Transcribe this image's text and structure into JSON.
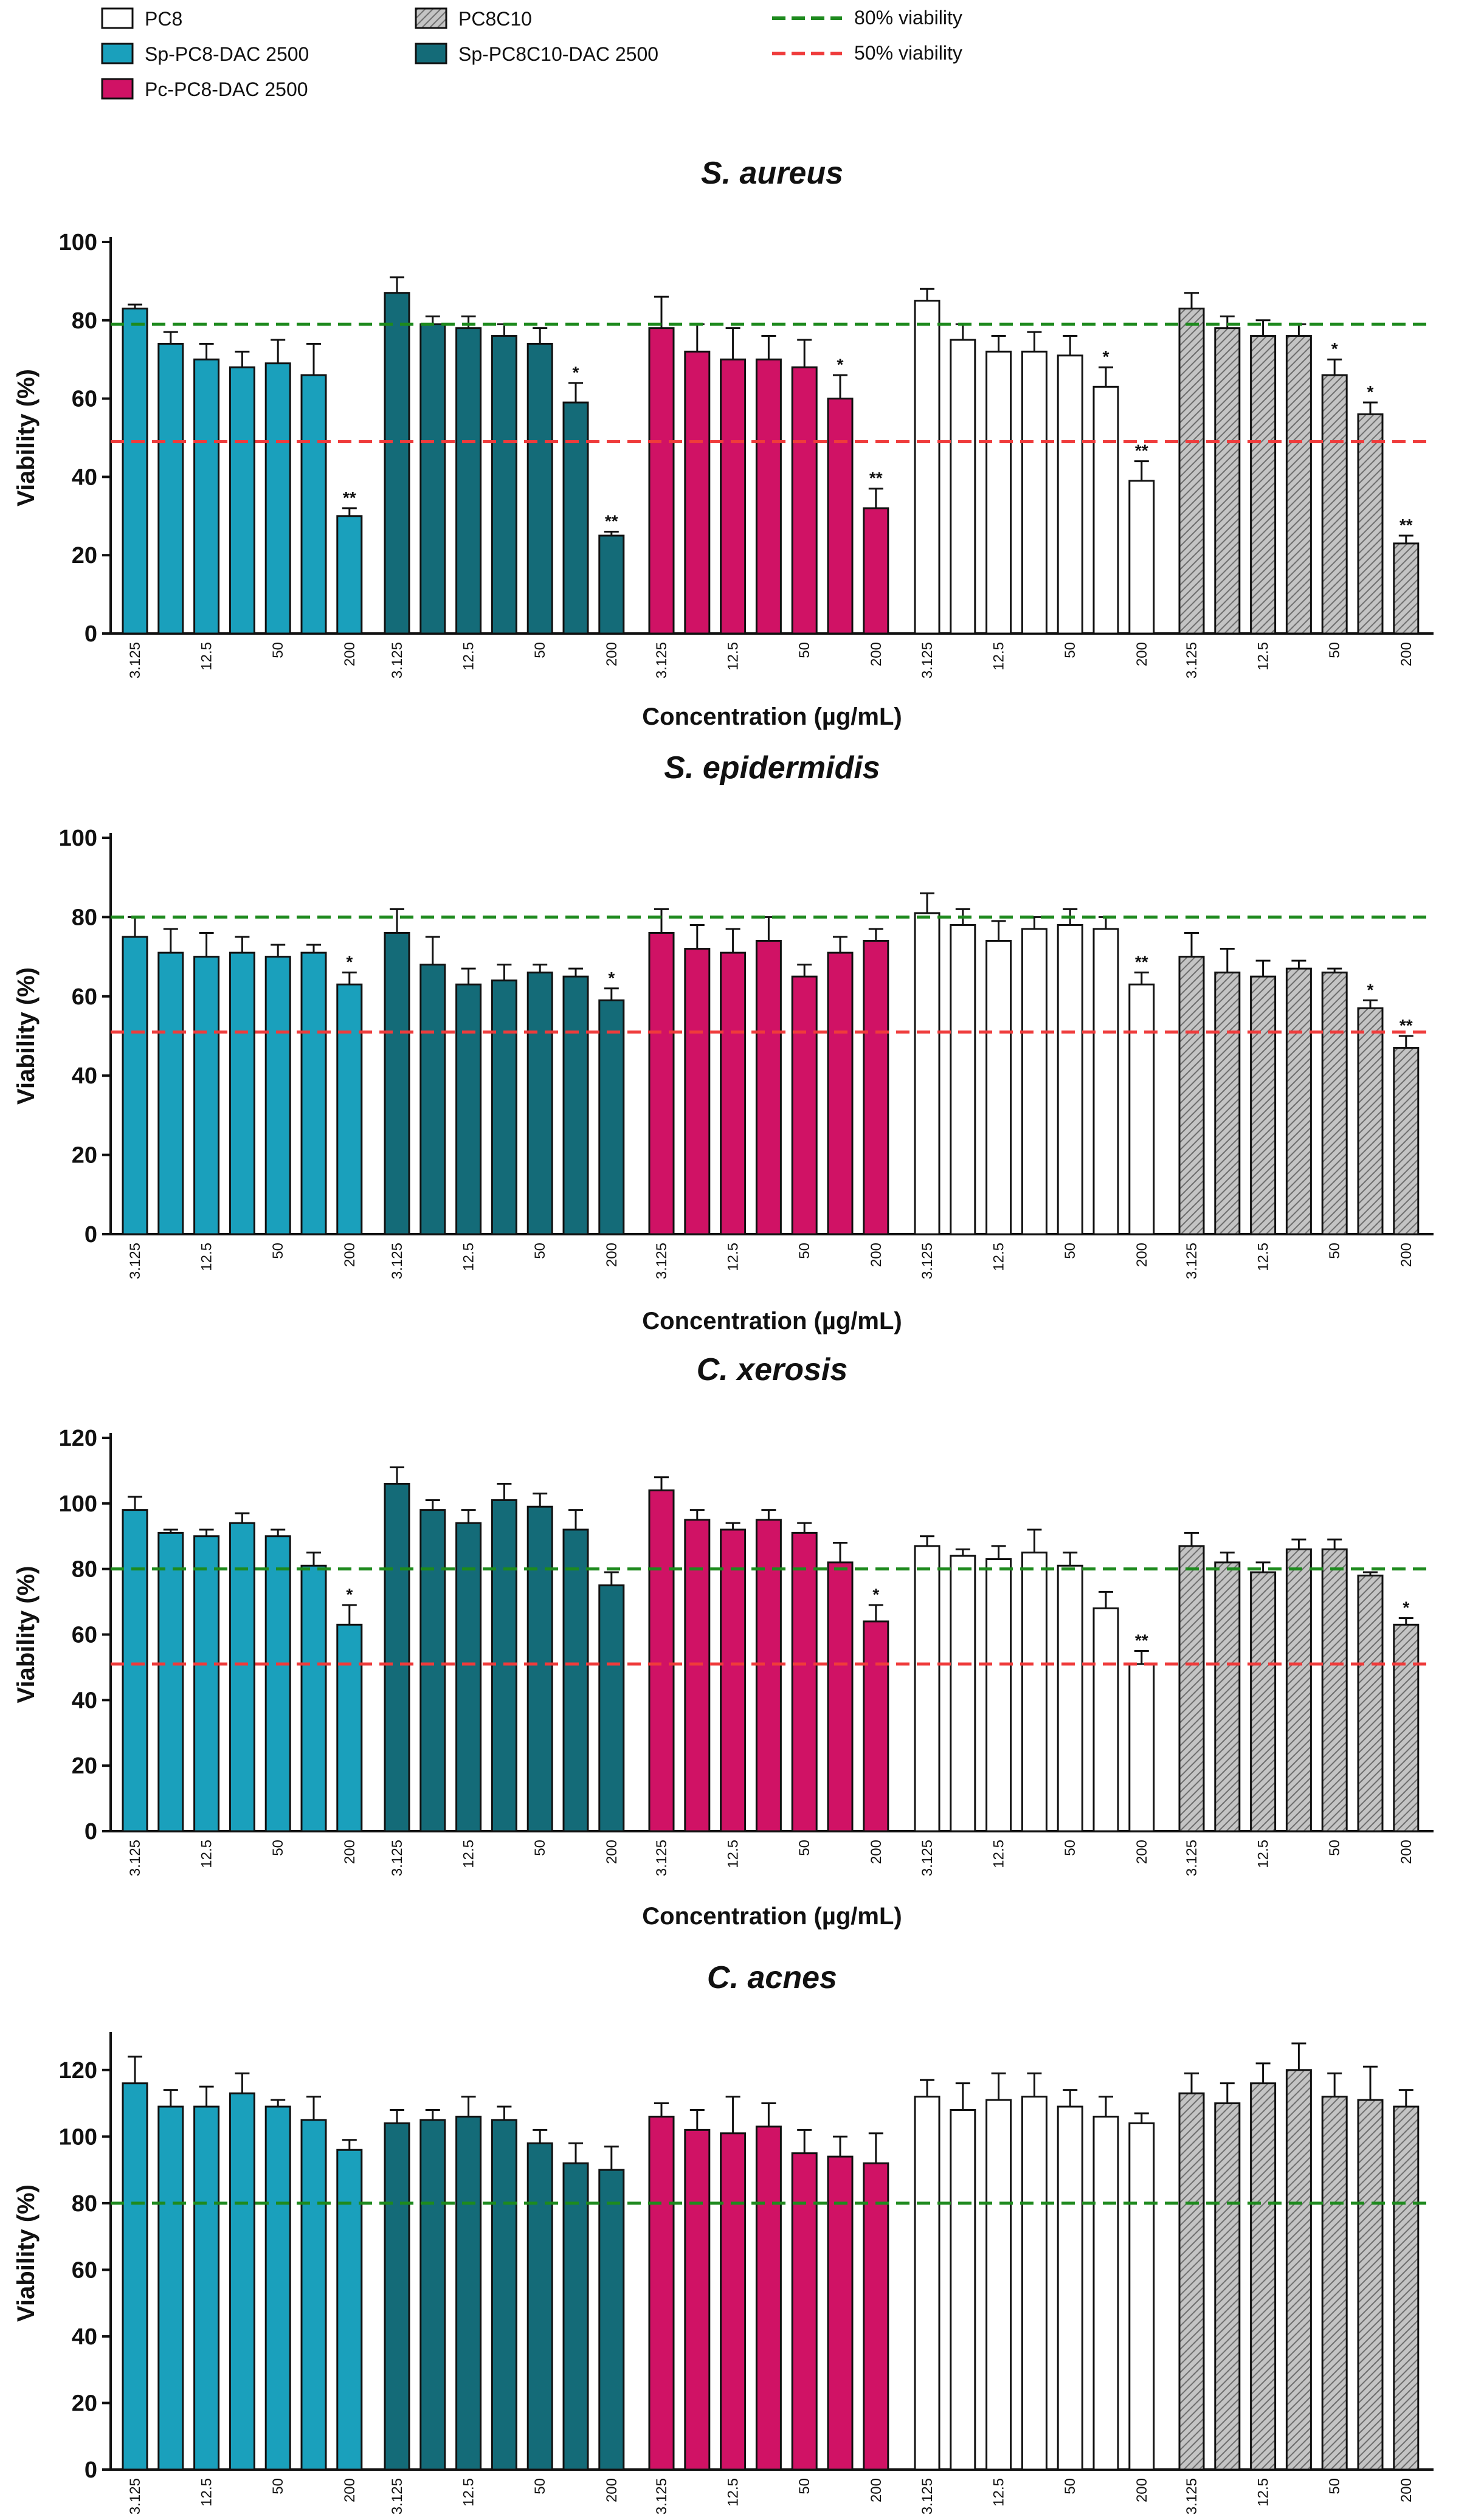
{
  "legend": {
    "series": [
      {
        "name": "PC8",
        "color": "#ffffff",
        "pattern": "none"
      },
      {
        "name": "Sp-PC8-DAC 2500",
        "color": "#1aa0bc",
        "pattern": "none"
      },
      {
        "name": "Pc-PC8-DAC 2500",
        "color": "#d01265",
        "pattern": "none"
      },
      {
        "name": "PC8C10",
        "color": "#b5b5b5",
        "pattern": "hatch"
      },
      {
        "name": "Sp-PC8C10-DAC 2500",
        "color": "#146b78",
        "pattern": "none"
      }
    ],
    "lines": [
      {
        "name": "80% viability",
        "color": "#1e8a1e"
      },
      {
        "name": "50% viability",
        "color": "#ef3b3b"
      }
    ]
  },
  "chart_data": [
    {
      "type": "bar",
      "title": "S. aureus",
      "xlabel": "Concentration (µg/mL)",
      "ylabel": "Viability (%)",
      "ylim": [
        0,
        100
      ],
      "yticks": [
        0,
        20,
        40,
        60,
        80,
        100
      ],
      "tick_labels": [
        "3.125",
        "12.5",
        "50",
        "200"
      ],
      "ref_lines": [
        {
          "value": 79,
          "color": "#1e8a1e"
        },
        {
          "value": 49,
          "color": "#ef3b3b"
        }
      ],
      "series": [
        {
          "name": "Sp-PC8-DAC 2500",
          "color": "#1aa0bc",
          "pattern": "none",
          "values": [
            83,
            74,
            70,
            68,
            69,
            66,
            30
          ],
          "errors": [
            1,
            3,
            4,
            4,
            6,
            8,
            2
          ],
          "sig": [
            "",
            "",
            "",
            "",
            "",
            "",
            "**"
          ]
        },
        {
          "name": "Sp-PC8C10-DAC 2500",
          "color": "#146b78",
          "pattern": "none",
          "values": [
            87,
            79,
            78,
            76,
            74,
            59,
            25
          ],
          "errors": [
            4,
            2,
            3,
            3,
            4,
            5,
            1
          ],
          "sig": [
            "",
            "",
            "",
            "",
            "",
            "*",
            "**"
          ]
        },
        {
          "name": "Pc-PC8-DAC 2500",
          "color": "#d01265",
          "pattern": "none",
          "values": [
            78,
            72,
            70,
            70,
            68,
            60,
            32
          ],
          "errors": [
            8,
            7,
            8,
            6,
            7,
            6,
            5
          ],
          "sig": [
            "",
            "",
            "",
            "",
            "",
            "*",
            "**"
          ]
        },
        {
          "name": "PC8",
          "color": "#ffffff",
          "pattern": "none",
          "values": [
            85,
            75,
            72,
            72,
            71,
            63,
            39
          ],
          "errors": [
            3,
            4,
            4,
            5,
            5,
            5,
            5
          ],
          "sig": [
            "",
            "",
            "",
            "",
            "",
            "*",
            "**"
          ]
        },
        {
          "name": "PC8C10",
          "color": "#b5b5b5",
          "pattern": "hatch",
          "values": [
            83,
            78,
            76,
            76,
            66,
            56,
            23
          ],
          "errors": [
            4,
            3,
            4,
            3,
            4,
            3,
            2
          ],
          "sig": [
            "",
            "",
            "",
            "",
            "*",
            "*",
            "**"
          ]
        }
      ]
    },
    {
      "type": "bar",
      "title": "S. epidermidis",
      "xlabel": "Concentration (µg/mL)",
      "ylabel": "Viability (%)",
      "ylim": [
        0,
        100
      ],
      "yticks": [
        0,
        20,
        40,
        60,
        80,
        100
      ],
      "tick_labels": [
        "3.125",
        "12.5",
        "50",
        "200"
      ],
      "ref_lines": [
        {
          "value": 80,
          "color": "#1e8a1e"
        },
        {
          "value": 51,
          "color": "#ef3b3b"
        }
      ],
      "series": [
        {
          "name": "Sp-PC8-DAC 2500",
          "color": "#1aa0bc",
          "pattern": "none",
          "values": [
            75,
            71,
            70,
            71,
            70,
            71,
            63
          ],
          "errors": [
            5,
            6,
            6,
            4,
            3,
            2,
            3
          ],
          "sig": [
            "",
            "",
            "",
            "",
            "",
            "",
            "*"
          ]
        },
        {
          "name": "Sp-PC8C10-DAC 2500",
          "color": "#146b78",
          "pattern": "none",
          "values": [
            76,
            68,
            63,
            64,
            66,
            65,
            59
          ],
          "errors": [
            6,
            7,
            4,
            4,
            2,
            2,
            3
          ],
          "sig": [
            "",
            "",
            "",
            "",
            "",
            "",
            "*"
          ]
        },
        {
          "name": "Pc-PC8-DAC 2500",
          "color": "#d01265",
          "pattern": "none",
          "values": [
            76,
            72,
            71,
            74,
            65,
            71,
            74
          ],
          "errors": [
            6,
            6,
            6,
            6,
            3,
            4,
            3
          ],
          "sig": [
            "",
            "",
            "",
            "",
            "",
            "",
            ""
          ]
        },
        {
          "name": "PC8",
          "color": "#ffffff",
          "pattern": "none",
          "values": [
            81,
            78,
            74,
            77,
            78,
            77,
            63
          ],
          "errors": [
            5,
            4,
            5,
            3,
            4,
            3,
            3
          ],
          "sig": [
            "",
            "",
            "",
            "",
            "",
            "",
            "**"
          ]
        },
        {
          "name": "PC8C10",
          "color": "#b5b5b5",
          "pattern": "hatch",
          "values": [
            70,
            66,
            65,
            67,
            66,
            57,
            47
          ],
          "errors": [
            6,
            6,
            4,
            2,
            1,
            2,
            3
          ],
          "sig": [
            "",
            "",
            "",
            "",
            "",
            "*",
            "**"
          ]
        }
      ]
    },
    {
      "type": "bar",
      "title": "C. xerosis",
      "xlabel": "Concentration (µg/mL)",
      "ylabel": "Viability (%)",
      "ylim": [
        0,
        120
      ],
      "yticks": [
        0,
        20,
        40,
        60,
        80,
        100,
        120
      ],
      "tick_labels": [
        "3.125",
        "12.5",
        "50",
        "200"
      ],
      "ref_lines": [
        {
          "value": 80,
          "color": "#1e8a1e"
        },
        {
          "value": 51,
          "color": "#ef3b3b"
        }
      ],
      "series": [
        {
          "name": "Sp-PC8-DAC 2500",
          "color": "#1aa0bc",
          "pattern": "none",
          "values": [
            98,
            91,
            90,
            94,
            90,
            81,
            63
          ],
          "errors": [
            4,
            1,
            2,
            3,
            2,
            4,
            6
          ],
          "sig": [
            "",
            "",
            "",
            "",
            "",
            "",
            "*"
          ]
        },
        {
          "name": "Sp-PC8C10-DAC 2500",
          "color": "#146b78",
          "pattern": "none",
          "values": [
            106,
            98,
            94,
            101,
            99,
            92,
            75
          ],
          "errors": [
            5,
            3,
            4,
            5,
            4,
            6,
            4
          ],
          "sig": [
            "",
            "",
            "",
            "",
            "",
            "",
            ""
          ]
        },
        {
          "name": "Pc-PC8-DAC 2500",
          "color": "#d01265",
          "pattern": "none",
          "values": [
            104,
            95,
            92,
            95,
            91,
            82,
            64
          ],
          "errors": [
            4,
            3,
            2,
            3,
            3,
            6,
            5
          ],
          "sig": [
            "",
            "",
            "",
            "",
            "",
            "",
            "*"
          ]
        },
        {
          "name": "PC8",
          "color": "#ffffff",
          "pattern": "none",
          "values": [
            87,
            84,
            83,
            85,
            81,
            68,
            51
          ],
          "errors": [
            3,
            2,
            4,
            7,
            4,
            5,
            4
          ],
          "sig": [
            "",
            "",
            "",
            "",
            "",
            "",
            "**"
          ]
        },
        {
          "name": "PC8C10",
          "color": "#b5b5b5",
          "pattern": "hatch",
          "values": [
            87,
            82,
            79,
            86,
            86,
            78,
            63
          ],
          "errors": [
            4,
            3,
            3,
            3,
            3,
            1,
            2
          ],
          "sig": [
            "",
            "",
            "",
            "",
            "",
            "",
            "*"
          ]
        }
      ]
    },
    {
      "type": "bar",
      "title": "C. acnes",
      "xlabel": "",
      "ylabel": "Viability (%)",
      "ylim": [
        0,
        130
      ],
      "yticks": [
        0,
        20,
        40,
        60,
        80,
        100,
        120
      ],
      "tick_labels": [
        "3.125",
        "12.5",
        "50",
        "200"
      ],
      "ref_lines": [
        {
          "value": 80,
          "color": "#1e8a1e"
        }
      ],
      "series": [
        {
          "name": "Sp-PC8-DAC 2500",
          "color": "#1aa0bc",
          "pattern": "none",
          "values": [
            116,
            109,
            109,
            113,
            109,
            105,
            96
          ],
          "errors": [
            8,
            5,
            6,
            6,
            2,
            7,
            3
          ],
          "sig": [
            "",
            "",
            "",
            "",
            "",
            "",
            ""
          ]
        },
        {
          "name": "Sp-PC8C10-DAC 2500",
          "color": "#146b78",
          "pattern": "none",
          "values": [
            104,
            105,
            106,
            105,
            98,
            92,
            90
          ],
          "errors": [
            4,
            3,
            6,
            4,
            4,
            6,
            7
          ],
          "sig": [
            "",
            "",
            "",
            "",
            "",
            "",
            ""
          ]
        },
        {
          "name": "Pc-PC8-DAC 2500",
          "color": "#d01265",
          "pattern": "none",
          "values": [
            106,
            102,
            101,
            103,
            95,
            94,
            92
          ],
          "errors": [
            4,
            6,
            11,
            7,
            7,
            6,
            9
          ],
          "sig": [
            "",
            "",
            "",
            "",
            "",
            "",
            ""
          ]
        },
        {
          "name": "PC8",
          "color": "#ffffff",
          "pattern": "none",
          "values": [
            112,
            108,
            111,
            112,
            109,
            106,
            104
          ],
          "errors": [
            5,
            8,
            8,
            7,
            5,
            6,
            3
          ],
          "sig": [
            "",
            "",
            "",
            "",
            "",
            "",
            ""
          ]
        },
        {
          "name": "PC8C10",
          "color": "#b5b5b5",
          "pattern": "hatch",
          "values": [
            113,
            110,
            116,
            120,
            112,
            111,
            109
          ],
          "errors": [
            6,
            6,
            6,
            8,
            7,
            10,
            5
          ],
          "sig": [
            "",
            "",
            "",
            "",
            "",
            "",
            ""
          ]
        }
      ]
    }
  ]
}
